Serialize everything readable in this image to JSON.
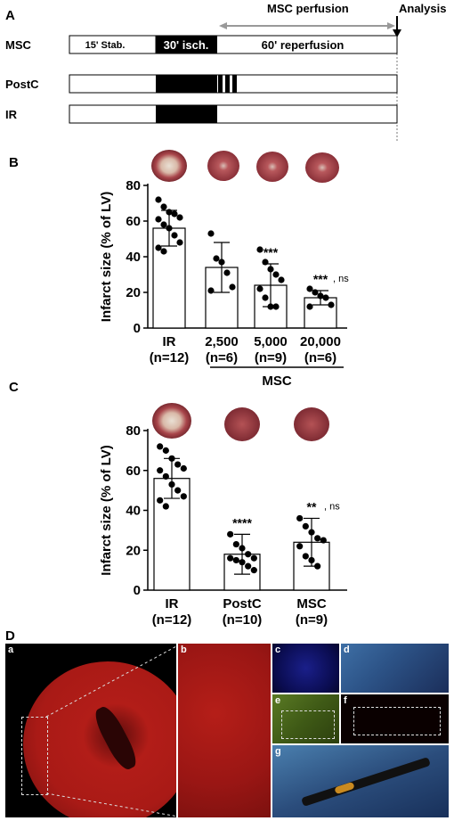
{
  "panels": {
    "a": "A",
    "b": "B",
    "c": "C",
    "d": "D"
  },
  "protocol": {
    "header_perfusion": "MSC perfusion",
    "header_analysis": "Analysis",
    "rows": [
      {
        "label": "MSC",
        "stab": "15' Stab.",
        "isch": "30' isch.",
        "reperf": "60' reperfusion",
        "postc": false
      },
      {
        "label": "PostC",
        "stab": "",
        "isch": "",
        "reperf": "",
        "postc": true
      },
      {
        "label": "IR",
        "stab": "",
        "isch": "",
        "reperf": "",
        "postc": false
      }
    ]
  },
  "chart_data": [
    {
      "type": "bar",
      "ylabel": "Infarct size (% of LV)",
      "ylim": [
        0,
        80
      ],
      "yticks": [
        0,
        20,
        40,
        60,
        80
      ],
      "categories": [
        "IR",
        "2,500",
        "5,000",
        "20,000"
      ],
      "category_n": [
        "(n=12)",
        "(n=6)",
        "(n=9)",
        "(n=6)"
      ],
      "group_label": "MSC",
      "values": [
        56,
        34,
        24,
        17
      ],
      "errors": [
        10,
        14,
        12,
        4
      ],
      "significance": [
        "",
        "",
        "***",
        "***"
      ],
      "significance_ns": [
        "",
        "",
        "",
        ", ns"
      ],
      "points": [
        [
          72,
          68,
          65,
          64,
          62,
          61,
          58,
          56,
          52,
          48,
          45,
          43
        ],
        [
          53,
          39,
          37,
          31,
          23,
          21
        ],
        [
          44,
          37,
          33,
          30,
          27,
          22,
          17,
          12,
          12
        ],
        [
          22,
          20,
          18,
          17,
          13,
          12
        ]
      ]
    },
    {
      "type": "bar",
      "ylabel": "Infarct size (% of LV)",
      "ylim": [
        0,
        80
      ],
      "yticks": [
        0,
        20,
        40,
        60,
        80
      ],
      "categories": [
        "IR",
        "PostC",
        "MSC"
      ],
      "category_n": [
        "(n=12)",
        "(n=10)",
        "(n=9)"
      ],
      "values": [
        56,
        18,
        24
      ],
      "errors": [
        10,
        10,
        12
      ],
      "significance": [
        "",
        "****",
        "**"
      ],
      "significance_ns": [
        "",
        "",
        ", ns"
      ],
      "points": [
        [
          72,
          70,
          66,
          63,
          61,
          60,
          57,
          53,
          50,
          47,
          45,
          42
        ],
        [
          28,
          23,
          21,
          18,
          16,
          16,
          15,
          14,
          12,
          10
        ],
        [
          36,
          32,
          29,
          26,
          25,
          22,
          17,
          15,
          12
        ]
      ]
    }
  ],
  "micrographs": {
    "a": "a",
    "b": "b",
    "c": "c",
    "d": "d",
    "e": "e",
    "f": "f",
    "g": "g"
  }
}
